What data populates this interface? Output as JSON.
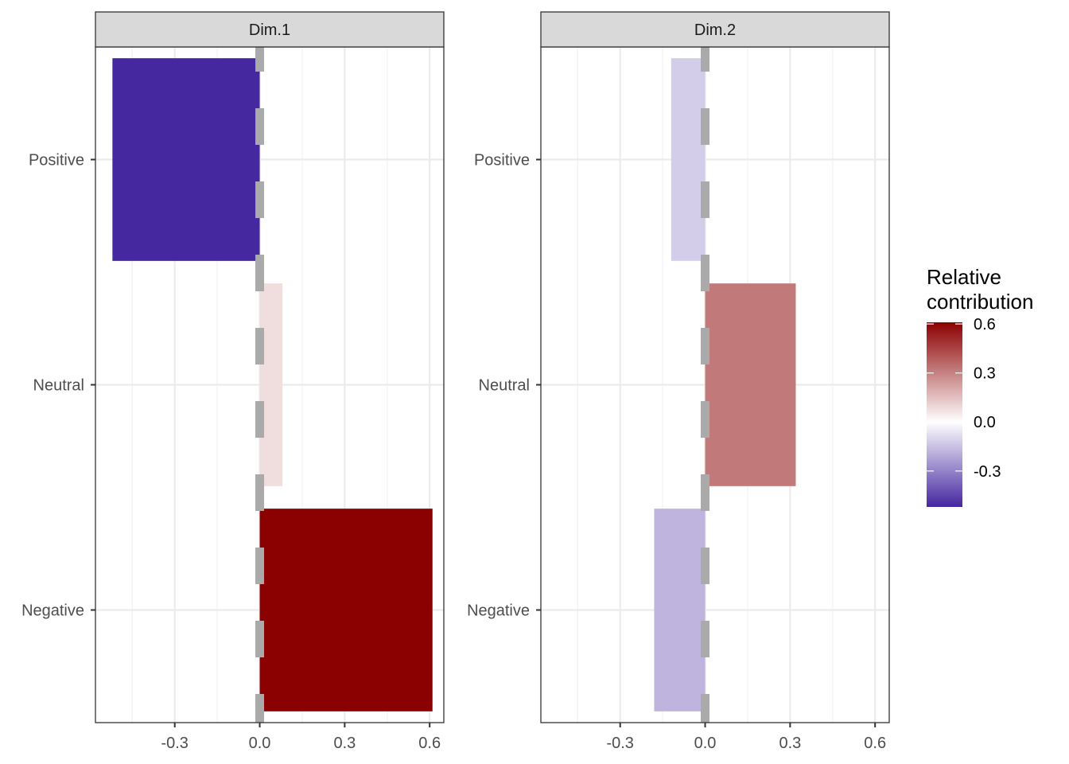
{
  "chart_data": {
    "type": "bar",
    "orientation": "horizontal",
    "categories": [
      "Positive",
      "Neutral",
      "Negative"
    ],
    "panels": [
      {
        "label": "Dim.1",
        "values": [
          -0.52,
          0.08,
          0.61
        ]
      },
      {
        "label": "Dim.2",
        "values": [
          -0.12,
          0.32,
          -0.18
        ]
      }
    ],
    "xlim": [
      -0.58,
      0.65
    ],
    "x_ticks": [
      -0.3,
      0.0,
      0.3,
      0.6
    ],
    "x_tick_labels": [
      "-0.3",
      "0.0",
      "0.3",
      "0.6"
    ],
    "reference_line": {
      "x": 0.0,
      "style": "dashed",
      "color": "#aaaaaa"
    },
    "grid": true,
    "legend": {
      "title_lines": [
        "Relative",
        "contribution"
      ],
      "position": "right",
      "range": [
        -0.52,
        0.61
      ],
      "ticks": [
        0.6,
        0.3,
        0.0,
        -0.3
      ],
      "tick_labels": [
        "0.6",
        "0.3",
        "0.0",
        "-0.3"
      ],
      "colors": {
        "low": "#4527A0",
        "mid": "#FFFFFF",
        "high": "#8B0000"
      }
    }
  }
}
